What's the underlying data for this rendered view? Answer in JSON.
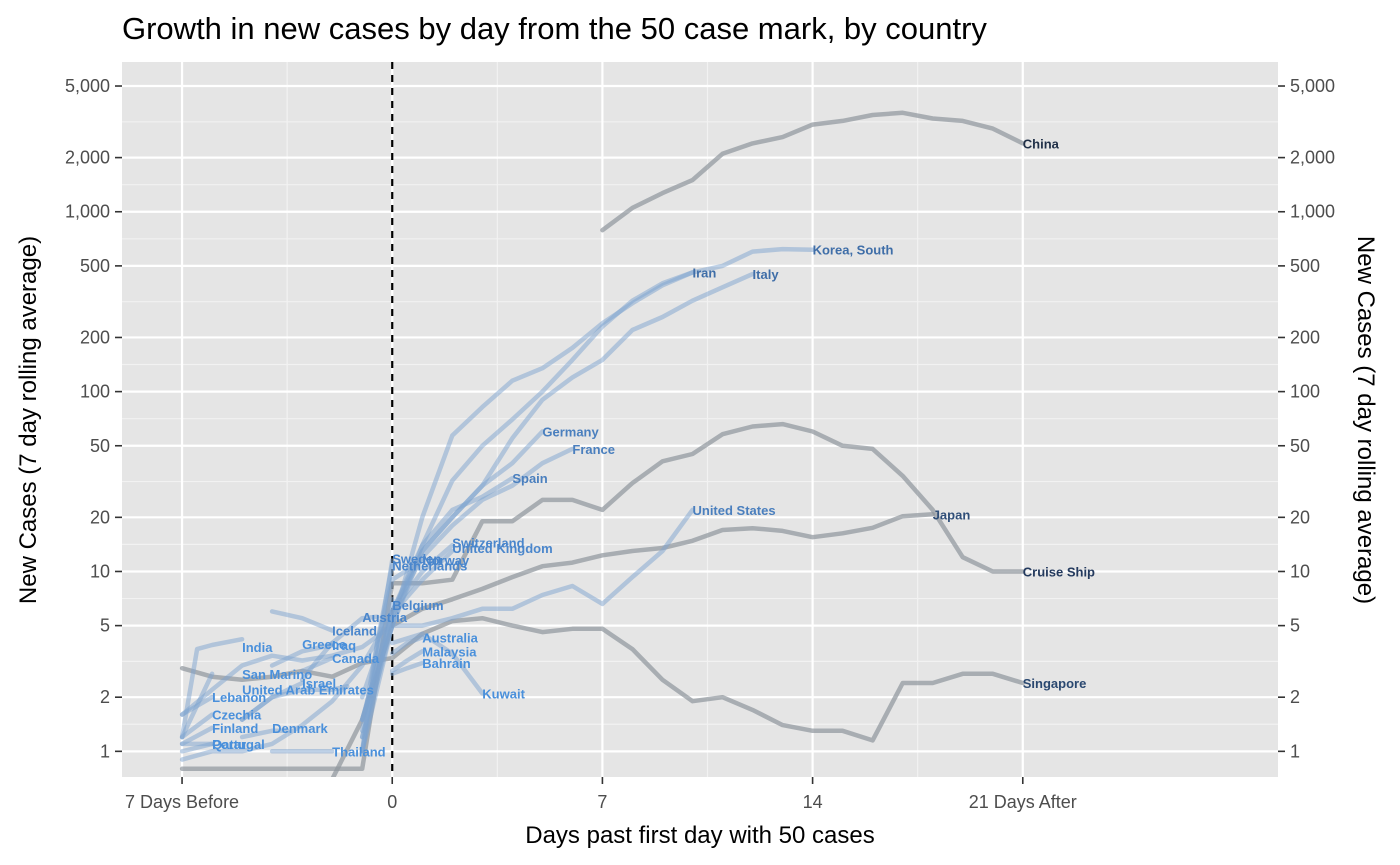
{
  "chart_data": {
    "type": "line",
    "title": "Growth in new cases by day from the 50 case mark, by country",
    "xlabel": "Days past first day with 50 cases",
    "ylabel": "New Cases (7 day rolling average)",
    "y_scale": "log10",
    "xlim": [
      -9,
      29.5
    ],
    "ylim": [
      0.72,
      6800
    ],
    "x_ticks": [
      {
        "value": -7,
        "label": "7 Days Before"
      },
      {
        "value": 0,
        "label": "0"
      },
      {
        "value": 7,
        "label": "7"
      },
      {
        "value": 14,
        "label": "14"
      },
      {
        "value": 21,
        "label": "21 Days After"
      }
    ],
    "y_ticks": [
      {
        "value": 1,
        "label": "1"
      },
      {
        "value": 2,
        "label": "2"
      },
      {
        "value": 5,
        "label": "5"
      },
      {
        "value": 10,
        "label": "10"
      },
      {
        "value": 20,
        "label": "20"
      },
      {
        "value": 50,
        "label": "50"
      },
      {
        "value": 100,
        "label": "100"
      },
      {
        "value": 200,
        "label": "200"
      },
      {
        "value": 500,
        "label": "500"
      },
      {
        "value": 1000,
        "label": "1,000"
      },
      {
        "value": 2000,
        "label": "2,000"
      },
      {
        "value": 5000,
        "label": "5,000"
      }
    ],
    "reference_line": {
      "x": 0,
      "style": "dashed"
    },
    "grid": true,
    "colors": {
      "gray": "#8f959c",
      "blue": "#7ea4cf",
      "panel": "#e5e5e5",
      "grid": "#ffffff"
    },
    "series": [
      {
        "name": "China",
        "group": "gray",
        "label_color": "#1f2f47",
        "x": [
          7,
          8,
          9,
          10,
          11,
          12,
          13,
          14,
          15,
          16,
          17,
          18,
          19,
          20,
          21
        ],
        "y": [
          790,
          1050,
          1270,
          1500,
          2100,
          2400,
          2600,
          3050,
          3200,
          3450,
          3550,
          3300,
          3200,
          2900,
          2400
        ]
      },
      {
        "name": "Cruise Ship",
        "group": "gray",
        "label_color": "#243a5e",
        "x": [
          -7,
          -6,
          -5,
          -4,
          -3,
          -2,
          -1,
          0,
          1,
          2,
          3,
          4,
          5,
          6,
          7,
          8,
          9,
          10,
          11,
          12,
          13,
          14,
          15,
          16,
          17,
          18,
          19,
          20,
          21
        ],
        "y": [
          0.8,
          0.8,
          0.8,
          0.8,
          0.8,
          0.8,
          0.8,
          8.6,
          8.6,
          9,
          19,
          19,
          25,
          25,
          22,
          31,
          41,
          45,
          58,
          64,
          66,
          60,
          50,
          48,
          34,
          22,
          12,
          10,
          10
        ]
      },
      {
        "name": "Singapore",
        "group": "gray",
        "label_color": "#2a4870",
        "x": [
          -7,
          -6,
          -5,
          -4,
          -3,
          -2,
          -1,
          0,
          1,
          2,
          3,
          4,
          5,
          6,
          7,
          8,
          9,
          10,
          11,
          12,
          13,
          14,
          15,
          16,
          17,
          18,
          19,
          20,
          21
        ],
        "y": [
          2.9,
          2.6,
          2.5,
          2.6,
          2.8,
          2.6,
          3.1,
          3.3,
          4.5,
          5.3,
          5.5,
          5,
          4.6,
          4.8,
          4.8,
          3.7,
          2.5,
          1.9,
          2,
          1.7,
          1.4,
          1.3,
          1.3,
          1.15,
          2.4,
          2.4,
          2.7,
          2.7,
          2.4
        ]
      },
      {
        "name": "Japan",
        "group": "gray",
        "label_color": "#2f4e78",
        "x": [
          -2,
          -1,
          0,
          1,
          2,
          3,
          4,
          5,
          6,
          7,
          8,
          9,
          10,
          11,
          12,
          13,
          14,
          15,
          16,
          17,
          18
        ],
        "y": [
          0.7,
          1.5,
          5,
          6.2,
          7,
          8,
          9.3,
          10.7,
          11.2,
          12.3,
          13,
          13.5,
          14.8,
          17,
          17.4,
          16.8,
          15.5,
          16.3,
          17.5,
          20.3,
          20.8
        ]
      },
      {
        "name": "Korea, South",
        "group": "blue",
        "label_color": "#3f6ea8",
        "x": [
          -1,
          0,
          1,
          2,
          3,
          4,
          5,
          6,
          7,
          8,
          9,
          10,
          11,
          12,
          13,
          14
        ],
        "y": [
          1.5,
          5,
          14,
          32,
          50,
          70,
          100,
          150,
          230,
          320,
          400,
          460,
          500,
          600,
          620,
          615
        ]
      },
      {
        "name": "Iran",
        "group": "blue",
        "label_color": "#3f6ea8",
        "x": [
          -1,
          0,
          1,
          2,
          3,
          4,
          5,
          6,
          7,
          8,
          9,
          10
        ],
        "y": [
          1.2,
          5,
          20,
          57,
          82,
          115,
          135,
          175,
          240,
          310,
          390,
          460
        ]
      },
      {
        "name": "Italy",
        "group": "blue",
        "label_color": "#3f6ea8",
        "x": [
          -1,
          0,
          1,
          2,
          3,
          4,
          5,
          6,
          7,
          8,
          9,
          10,
          11,
          12
        ],
        "y": [
          1.5,
          6,
          13,
          20,
          30,
          55,
          90,
          120,
          150,
          220,
          260,
          320,
          380,
          450
        ]
      },
      {
        "name": "Germany",
        "group": "blue",
        "label_color": "#4a7fbe",
        "x": [
          -1,
          0,
          1,
          2,
          3,
          4,
          5
        ],
        "y": [
          1,
          5,
          13,
          20,
          30,
          40,
          60
        ]
      },
      {
        "name": "France",
        "group": "blue",
        "label_color": "#4a7fbe",
        "x": [
          -1,
          0,
          1,
          2,
          3,
          4,
          5,
          6
        ],
        "y": [
          1.5,
          6,
          12,
          18,
          25,
          30,
          40,
          48
        ]
      },
      {
        "name": "Spain",
        "group": "blue",
        "label_color": "#4a7fbe",
        "x": [
          -1,
          0,
          1,
          2,
          3,
          4
        ],
        "y": [
          1.2,
          6,
          14,
          22,
          26,
          33
        ]
      },
      {
        "name": "United States",
        "group": "blue",
        "label_color": "#4a7fbe",
        "x": [
          -7,
          -6,
          -5,
          -4,
          -3,
          -2,
          -1,
          0,
          1,
          2,
          3,
          4,
          5,
          6,
          7,
          8,
          9,
          10
        ],
        "y": [
          1.6,
          2.2,
          3,
          3.4,
          3.2,
          3.4,
          3.8,
          5,
          5,
          5.5,
          6.2,
          6.2,
          7.4,
          8.3,
          6.6,
          9.3,
          13,
          22
        ]
      },
      {
        "name": "Switzerland",
        "group": "blue",
        "label_color": "#4a86cc",
        "x": [
          -1,
          0,
          1,
          2
        ],
        "y": [
          1,
          6,
          10,
          14
        ]
      },
      {
        "name": "United Kingdom",
        "group": "blue",
        "label_color": "#4a86cc",
        "x": [
          -7,
          -6,
          -5,
          -4,
          -3,
          -2,
          -1,
          0,
          1,
          2
        ],
        "y": [
          0.9,
          1,
          1,
          1.1,
          1.4,
          1.9,
          3,
          5.8,
          9,
          13
        ]
      },
      {
        "name": "Sweden",
        "group": "blue",
        "label_color": "#4a86cc",
        "x": [
          -1,
          -0.5,
          0
        ],
        "y": [
          1,
          3.5,
          11.5
        ]
      },
      {
        "name": "Norway",
        "group": "blue",
        "label_color": "#4a86cc",
        "x": [
          -1,
          -0.5,
          0,
          1
        ],
        "y": [
          1,
          4,
          9,
          11.5
        ]
      },
      {
        "name": "Netherlands",
        "group": "blue",
        "label_color": "#4a86cc",
        "x": [
          -1,
          -0.5,
          0
        ],
        "y": [
          1.3,
          4,
          10.8
        ]
      },
      {
        "name": "Belgium",
        "group": "blue",
        "label_color": "#4a86cc",
        "x": [
          -1,
          -0.5,
          0
        ],
        "y": [
          2,
          3.5,
          7
        ]
      },
      {
        "name": "Austria",
        "group": "blue",
        "label_color": "#4a86cc",
        "x": [
          -2,
          -1,
          -0.5
        ],
        "y": [
          4,
          5.5,
          5.6
        ]
      },
      {
        "name": "Iceland",
        "group": "blue",
        "label_color": "#4a86cc",
        "x": [
          -4,
          -3,
          -2
        ],
        "y": [
          6,
          5.5,
          4.7
        ]
      },
      {
        "name": "Greece",
        "group": "blue",
        "label_color": "#4a90db",
        "x": [
          -3,
          -2.5,
          -2
        ],
        "y": [
          2.5,
          3.2,
          4
        ]
      },
      {
        "name": "Iraq",
        "group": "blue",
        "label_color": "#4a90db",
        "x": [
          -4,
          -3,
          -2
        ],
        "y": [
          3,
          3.6,
          3.9
        ]
      },
      {
        "name": "Canada",
        "group": "blue",
        "label_color": "#4a90db",
        "x": [
          -3,
          -2
        ],
        "y": [
          2.8,
          3.3
        ]
      },
      {
        "name": "Australia",
        "group": "blue",
        "label_color": "#4a90db",
        "x": [
          0,
          0.5,
          1
        ],
        "y": [
          3.5,
          4,
          4.3
        ]
      },
      {
        "name": "Malaysia",
        "group": "blue",
        "label_color": "#4a90db",
        "x": [
          0,
          0.5,
          1
        ],
        "y": [
          2.8,
          3.2,
          3.6
        ]
      },
      {
        "name": "Bahrain",
        "group": "blue",
        "label_color": "#4a90db",
        "x": [
          0,
          0.5,
          1
        ],
        "y": [
          2.7,
          2.9,
          3.1
        ]
      },
      {
        "name": "Kuwait",
        "group": "blue",
        "label_color": "#4a90db",
        "x": [
          0,
          1,
          2,
          3
        ],
        "y": [
          4,
          4.5,
          3.5,
          2.1
        ]
      },
      {
        "name": "India",
        "group": "blue",
        "label_color": "#4a90db",
        "x": [
          -7,
          -6.5,
          -6,
          -5
        ],
        "y": [
          1.2,
          3.7,
          3.9,
          4.2
        ]
      },
      {
        "name": "San Marino",
        "group": "blue",
        "label_color": "#4a90db",
        "x": [
          -7,
          -6
        ],
        "y": [
          1.2,
          2.7
        ]
      },
      {
        "name": "Lebanon",
        "group": "blue",
        "label_color": "#4a90db",
        "x": [
          -7,
          -6
        ],
        "y": [
          1.6,
          2
        ]
      },
      {
        "name": "United Arab Emirates",
        "group": "blue",
        "label_color": "#4a90db",
        "x": [
          -5,
          -4,
          -3,
          -2,
          -1.5
        ],
        "y": [
          1.5,
          2,
          2.2,
          2.2,
          2.3
        ]
      },
      {
        "name": "Israel",
        "group": "blue",
        "label_color": "#4a90db",
        "x": [
          -5,
          -4,
          -3
        ],
        "y": [
          1.5,
          2,
          2.4
        ]
      },
      {
        "name": "Czechia",
        "group": "blue",
        "label_color": "#4a90db",
        "x": [
          -7,
          -6
        ],
        "y": [
          1.2,
          1.6
        ]
      },
      {
        "name": "Finland",
        "group": "blue",
        "label_color": "#4a90db",
        "x": [
          -7,
          -6
        ],
        "y": [
          1.1,
          1.35
        ]
      },
      {
        "name": "Denmark",
        "group": "blue",
        "label_color": "#4a90db",
        "x": [
          -5,
          -4,
          -3.5
        ],
        "y": [
          1.2,
          1.3,
          1.3
        ]
      },
      {
        "name": "Portugal",
        "group": "blue",
        "label_color": "#4a90db",
        "x": [
          -7,
          -6
        ],
        "y": [
          1,
          1.1
        ]
      },
      {
        "name": "Qatar",
        "group": "blue",
        "label_color": "#4a90db",
        "x": [
          -7,
          -6
        ],
        "y": [
          1.1,
          1.1
        ]
      },
      {
        "name": "Thailand",
        "group": "blue",
        "label_color": "#4a90db",
        "x": [
          -4,
          -3,
          -2
        ],
        "y": [
          1,
          1,
          1
        ]
      }
    ],
    "labels": [
      {
        "series": "China",
        "text": "China",
        "x": 21,
        "y": 2400
      },
      {
        "series": "Korea, South",
        "text": "Korea, South",
        "x": 14,
        "y": 615
      },
      {
        "series": "Iran",
        "text": "Iran",
        "x": 10,
        "y": 460
      },
      {
        "series": "Italy",
        "text": "Italy",
        "x": 12,
        "y": 450
      },
      {
        "series": "Germany",
        "text": "Germany",
        "x": 5,
        "y": 60
      },
      {
        "series": "France",
        "text": "France",
        "x": 6,
        "y": 48
      },
      {
        "series": "Spain",
        "text": "Spain",
        "x": 4,
        "y": 33
      },
      {
        "series": "United States",
        "text": "United States",
        "x": 10,
        "y": 22
      },
      {
        "series": "Japan",
        "text": "Japan",
        "x": 18,
        "y": 20.8
      },
      {
        "series": "Cruise Ship",
        "text": "Cruise Ship",
        "x": 21,
        "y": 10
      },
      {
        "series": "Singapore",
        "text": "Singapore",
        "x": 21,
        "y": 2.4
      },
      {
        "series": "Switzerland",
        "text": "Switzerland",
        "x": 2,
        "y": 14.5
      },
      {
        "series": "United Kingdom",
        "text": "United Kingdom",
        "x": 2,
        "y": 13.5
      },
      {
        "series": "Sweden",
        "text": "Sweden",
        "x": 0,
        "y": 11.8
      },
      {
        "series": "Norway",
        "text": "Norway",
        "x": 1,
        "y": 11.6
      },
      {
        "series": "Netherlands",
        "text": "Netherlands",
        "x": 0,
        "y": 10.8
      },
      {
        "series": "Belgium",
        "text": "Belgium",
        "x": 0,
        "y": 6.5
      },
      {
        "series": "Austria",
        "text": "Austria",
        "x": -1,
        "y": 5.6
      },
      {
        "series": "Iceland",
        "text": "Iceland",
        "x": -2,
        "y": 4.7
      },
      {
        "series": "Greece",
        "text": "Greece",
        "x": -3,
        "y": 3.95
      },
      {
        "series": "Iraq",
        "text": "Iraq",
        "x": -2,
        "y": 3.9
      },
      {
        "series": "Canada",
        "text": "Canada",
        "x": -2,
        "y": 3.3
      },
      {
        "series": "Australia",
        "text": "Australia",
        "x": 1,
        "y": 4.3
      },
      {
        "series": "Malaysia",
        "text": "Malaysia",
        "x": 1,
        "y": 3.6
      },
      {
        "series": "Bahrain",
        "text": "Bahrain",
        "x": 1,
        "y": 3.1
      },
      {
        "series": "Kuwait",
        "text": "Kuwait",
        "x": 3,
        "y": 2.1
      },
      {
        "series": "India",
        "text": "India",
        "x": -5,
        "y": 3.8
      },
      {
        "series": "San Marino",
        "text": "San Marino",
        "x": -5,
        "y": 2.7
      },
      {
        "series": "Israel",
        "text": "Israel",
        "x": -3,
        "y": 2.4
      },
      {
        "series": "United Arab Emirates",
        "text": "United Arab Emirates",
        "x": -5,
        "y": 2.2
      },
      {
        "series": "Lebanon",
        "text": "Lebanon",
        "x": -6,
        "y": 2
      },
      {
        "series": "Czechia",
        "text": "Czechia",
        "x": -6,
        "y": 1.6
      },
      {
        "series": "Finland",
        "text": "Finland",
        "x": -6,
        "y": 1.35
      },
      {
        "series": "Denmark",
        "text": "Denmark",
        "x": -4,
        "y": 1.35
      },
      {
        "series": "Portugal",
        "text": "Portugal",
        "x": -6,
        "y": 1.1
      },
      {
        "series": "Qatar",
        "text": "Qatar",
        "x": -6,
        "y": 1.1
      },
      {
        "series": "Thailand",
        "text": "Thailand",
        "x": -2,
        "y": 1
      }
    ]
  }
}
